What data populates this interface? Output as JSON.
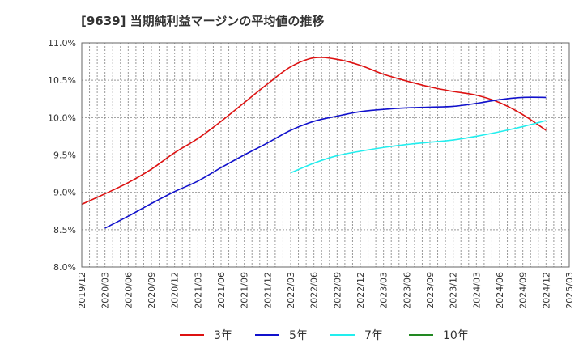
{
  "title": "[9639]  当期純利益マージンの平均値の推移",
  "chart_data": {
    "type": "line",
    "title": "[9639]  当期純利益マージンの平均値の推移",
    "xlabel": "",
    "ylabel": "",
    "grid": true,
    "legend_position": "bottom",
    "ylim": [
      8.0,
      11.0
    ],
    "y_ticks": [
      "8.0%",
      "8.5%",
      "9.0%",
      "9.5%",
      "10.0%",
      "10.5%",
      "11.0%"
    ],
    "y_tick_values": [
      8.0,
      8.5,
      9.0,
      9.5,
      10.0,
      10.5,
      11.0
    ],
    "x_ticks": [
      "2019/12",
      "2020/03",
      "2020/06",
      "2020/09",
      "2020/12",
      "2021/03",
      "2021/06",
      "2021/09",
      "2021/12",
      "2022/03",
      "2022/06",
      "2022/09",
      "2022/12",
      "2023/03",
      "2023/06",
      "2023/09",
      "2023/12",
      "2024/03",
      "2024/06",
      "2024/09",
      "2024/12",
      "2025/03"
    ],
    "series": [
      {
        "name": "3年",
        "color": "#dd1111",
        "x": [
          "2019/12",
          "2020/03",
          "2020/06",
          "2020/09",
          "2020/12",
          "2021/03",
          "2021/06",
          "2021/09",
          "2021/12",
          "2022/03",
          "2022/06",
          "2022/09",
          "2022/12",
          "2023/03",
          "2023/06",
          "2023/09",
          "2023/12",
          "2024/03",
          "2024/06",
          "2024/09",
          "2024/12"
        ],
        "values": [
          8.84,
          8.98,
          9.13,
          9.31,
          9.53,
          9.72,
          9.95,
          10.2,
          10.45,
          10.68,
          10.8,
          10.78,
          10.7,
          10.58,
          10.49,
          10.41,
          10.35,
          10.3,
          10.2,
          10.04,
          9.83
        ]
      },
      {
        "name": "5年",
        "color": "#1111cc",
        "x": [
          "2020/03",
          "2020/06",
          "2020/09",
          "2020/12",
          "2021/03",
          "2021/06",
          "2021/09",
          "2021/12",
          "2022/03",
          "2022/06",
          "2022/09",
          "2022/12",
          "2023/03",
          "2023/06",
          "2023/09",
          "2023/12",
          "2024/03",
          "2024/06",
          "2024/09",
          "2024/12"
        ],
        "values": [
          8.52,
          8.68,
          8.85,
          9.01,
          9.15,
          9.33,
          9.5,
          9.66,
          9.83,
          9.95,
          10.02,
          10.08,
          10.11,
          10.13,
          10.14,
          10.15,
          10.19,
          10.24,
          10.27,
          10.27
        ]
      },
      {
        "name": "7年",
        "color": "#22eeee",
        "x": [
          "2022/03",
          "2022/06",
          "2022/09",
          "2022/12",
          "2023/03",
          "2023/06",
          "2023/09",
          "2023/12",
          "2024/03",
          "2024/06",
          "2024/09",
          "2024/12"
        ],
        "values": [
          9.26,
          9.39,
          9.49,
          9.55,
          9.6,
          9.64,
          9.67,
          9.7,
          9.75,
          9.81,
          9.88,
          9.96
        ]
      },
      {
        "name": "10年",
        "color": "#228822",
        "x": [],
        "values": []
      }
    ]
  }
}
